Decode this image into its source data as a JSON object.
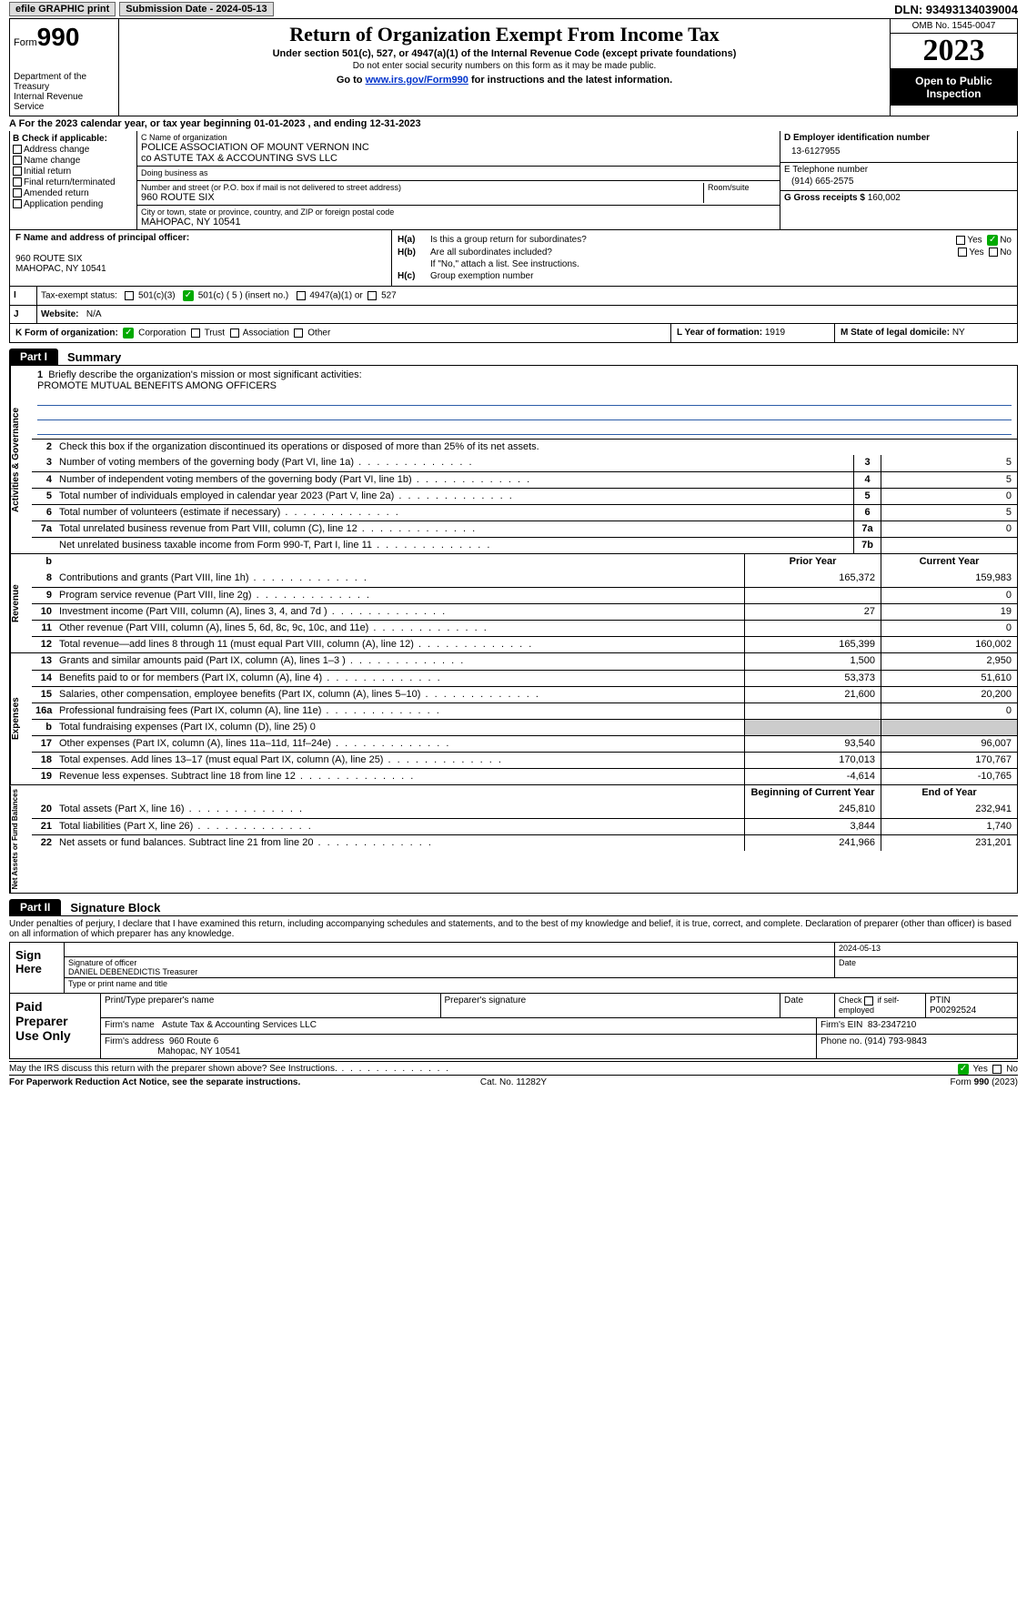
{
  "topbar": {
    "efile": "efile GRAPHIC print",
    "submission": "Submission Date - 2024-05-13",
    "dln": "DLN: 93493134039004"
  },
  "header": {
    "form_prefix": "Form",
    "form_no": "990",
    "dept": "Department of the Treasury",
    "irs": "Internal Revenue Service",
    "title": "Return of Organization Exempt From Income Tax",
    "sub1": "Under section 501(c), 527, or 4947(a)(1) of the Internal Revenue Code (except private foundations)",
    "sub2": "Do not enter social security numbers on this form as it may be made public.",
    "sub3_a": "Go to ",
    "sub3_link": "www.irs.gov/Form990",
    "sub3_b": " for instructions and the latest information.",
    "omb": "OMB No. 1545-0047",
    "year": "2023",
    "inspect": "Open to Public Inspection"
  },
  "line_a": "A  For the 2023 calendar year, or tax year beginning 01-01-2023    , and ending 12-31-2023",
  "col_b": {
    "hdr": "B Check if applicable:",
    "items": [
      "Address change",
      "Name change",
      "Initial return",
      "Final return/terminated",
      "Amended return",
      "Application pending"
    ]
  },
  "col_c": {
    "name_lbl": "C Name of organization",
    "name1": "POLICE ASSOCIATION OF MOUNT VERNON INC",
    "name2": "co ASTUTE TAX & ACCOUNTING SVS LLC",
    "dba_lbl": "Doing business as",
    "street_lbl": "Number and street (or P.O. box if mail is not delivered to street address)",
    "street": "960 ROUTE SIX",
    "room_lbl": "Room/suite",
    "city_lbl": "City or town, state or province, country, and ZIP or foreign postal code",
    "city": "MAHOPAC, NY  10541"
  },
  "col_d": {
    "ein_lbl": "D Employer identification number",
    "ein": "13-6127955",
    "tel_lbl": "E Telephone number",
    "tel": "(914) 665-2575",
    "gross_lbl": "G Gross receipts $ ",
    "gross": "160,002"
  },
  "col_f": {
    "lbl": "F  Name and address of principal officer:",
    "addr1": "960 ROUTE SIX",
    "addr2": "MAHOPAC, NY  10541"
  },
  "col_h": {
    "ha": "Is this a group return for subordinates?",
    "hb": "Are all subordinates included?",
    "hb_note": "If \"No,\" attach a list. See instructions.",
    "hc": "Group exemption number",
    "yes": "Yes",
    "no": "No"
  },
  "tax_exempt": {
    "lbl": "Tax-exempt status:",
    "a": "501(c)(3)",
    "b": "501(c) ( 5 ) (insert no.)",
    "c": "4947(a)(1) or",
    "d": "527"
  },
  "website": {
    "lbl": "Website:",
    "val": "N/A"
  },
  "row_k": {
    "lbl": "K Form of organization:",
    "corp": "Corporation",
    "trust": "Trust",
    "assoc": "Association",
    "other": "Other",
    "l_lbl": "L Year of formation: ",
    "l_val": "1919",
    "m_lbl": "M State of legal domicile: ",
    "m_val": "NY"
  },
  "part1": {
    "tag": "Part I",
    "title": "Summary"
  },
  "gov": {
    "sidetab": "Activities & Governance",
    "l1": "Briefly describe the organization's mission or most significant activities:",
    "mission": "PROMOTE MUTUAL BENEFITS AMONG OFFICERS",
    "l2": "Check this box      if the organization discontinued its operations or disposed of more than 25% of its net assets.",
    "rows": [
      {
        "n": "3",
        "d": "Number of voting members of the governing body (Part VI, line 1a)",
        "b": "3",
        "v": "5"
      },
      {
        "n": "4",
        "d": "Number of independent voting members of the governing body (Part VI, line 1b)",
        "b": "4",
        "v": "5"
      },
      {
        "n": "5",
        "d": "Total number of individuals employed in calendar year 2023 (Part V, line 2a)",
        "b": "5",
        "v": "0"
      },
      {
        "n": "6",
        "d": "Total number of volunteers (estimate if necessary)",
        "b": "6",
        "v": "5"
      },
      {
        "n": "7a",
        "d": "Total unrelated business revenue from Part VIII, column (C), line 12",
        "b": "7a",
        "v": "0"
      },
      {
        "n": "",
        "d": "Net unrelated business taxable income from Form 990-T, Part I, line 11",
        "b": "7b",
        "v": ""
      }
    ]
  },
  "rev": {
    "sidetab": "Revenue",
    "hdr_b": "b",
    "col1": "Prior Year",
    "col2": "Current Year",
    "rows": [
      {
        "n": "8",
        "d": "Contributions and grants (Part VIII, line 1h)",
        "c1": "165,372",
        "c2": "159,983"
      },
      {
        "n": "9",
        "d": "Program service revenue (Part VIII, line 2g)",
        "c1": "",
        "c2": "0"
      },
      {
        "n": "10",
        "d": "Investment income (Part VIII, column (A), lines 3, 4, and 7d )",
        "c1": "27",
        "c2": "19"
      },
      {
        "n": "11",
        "d": "Other revenue (Part VIII, column (A), lines 5, 6d, 8c, 9c, 10c, and 11e)",
        "c1": "",
        "c2": "0"
      },
      {
        "n": "12",
        "d": "Total revenue—add lines 8 through 11 (must equal Part VIII, column (A), line 12)",
        "c1": "165,399",
        "c2": "160,002"
      }
    ]
  },
  "exp": {
    "sidetab": "Expenses",
    "rows": [
      {
        "n": "13",
        "d": "Grants and similar amounts paid (Part IX, column (A), lines 1–3 )",
        "c1": "1,500",
        "c2": "2,950"
      },
      {
        "n": "14",
        "d": "Benefits paid to or for members (Part IX, column (A), line 4)",
        "c1": "53,373",
        "c2": "51,610"
      },
      {
        "n": "15",
        "d": "Salaries, other compensation, employee benefits (Part IX, column (A), lines 5–10)",
        "c1": "21,600",
        "c2": "20,200"
      },
      {
        "n": "16a",
        "d": "Professional fundraising fees (Part IX, column (A), line 11e)",
        "c1": "",
        "c2": "0"
      },
      {
        "n": "b",
        "d": "Total fundraising expenses (Part IX, column (D), line 25) 0",
        "shade": true
      },
      {
        "n": "17",
        "d": "Other expenses (Part IX, column (A), lines 11a–11d, 11f–24e)",
        "c1": "93,540",
        "c2": "96,007"
      },
      {
        "n": "18",
        "d": "Total expenses. Add lines 13–17 (must equal Part IX, column (A), line 25)",
        "c1": "170,013",
        "c2": "170,767"
      },
      {
        "n": "19",
        "d": "Revenue less expenses. Subtract line 18 from line 12",
        "c1": "-4,614",
        "c2": "-10,765"
      }
    ]
  },
  "net": {
    "sidetab": "Net Assets or Fund Balances",
    "col1": "Beginning of Current Year",
    "col2": "End of Year",
    "rows": [
      {
        "n": "20",
        "d": "Total assets (Part X, line 16)",
        "c1": "245,810",
        "c2": "232,941"
      },
      {
        "n": "21",
        "d": "Total liabilities (Part X, line 26)",
        "c1": "3,844",
        "c2": "1,740"
      },
      {
        "n": "22",
        "d": "Net assets or fund balances. Subtract line 21 from line 20",
        "c1": "241,966",
        "c2": "231,201"
      }
    ]
  },
  "part2": {
    "tag": "Part II",
    "title": "Signature Block"
  },
  "sig": {
    "perjury": "Under penalties of perjury, I declare that I have examined this return, including accompanying schedules and statements, and to the best of my knowledge and belief, it is true, correct, and complete. Declaration of preparer (other than officer) is based on all information of which preparer has any knowledge.",
    "sign_here": "Sign Here",
    "date": "2024-05-13",
    "sig_officer_lbl": "Signature of officer",
    "officer": "DANIEL DEBENEDICTIS Treasurer",
    "type_lbl": "Type or print name and title",
    "date_lbl": "Date"
  },
  "paid": {
    "lbl": "Paid Preparer Use Only",
    "h1": "Print/Type preparer's name",
    "h2": "Preparer's signature",
    "h3": "Date",
    "h4_a": "Check",
    "h4_b": "if self-employed",
    "h5": "PTIN",
    "ptin": "P00292524",
    "firm_lbl": "Firm's name",
    "firm": "Astute Tax & Accounting Services LLC",
    "ein_lbl": "Firm's EIN",
    "ein": "83-2347210",
    "addr_lbl": "Firm's address",
    "addr1": "960 Route 6",
    "addr2": "Mahopac, NY  10541",
    "phone_lbl": "Phone no.",
    "phone": "(914) 793-9843"
  },
  "bottom": {
    "discuss": "May the IRS discuss this return with the preparer shown above? See Instructions.",
    "yes": "Yes",
    "no": "No"
  },
  "footer": {
    "l": "For Paperwork Reduction Act Notice, see the separate instructions.",
    "c": "Cat. No. 11282Y",
    "r_a": "Form ",
    "r_b": "990",
    "r_c": " (2023)"
  }
}
